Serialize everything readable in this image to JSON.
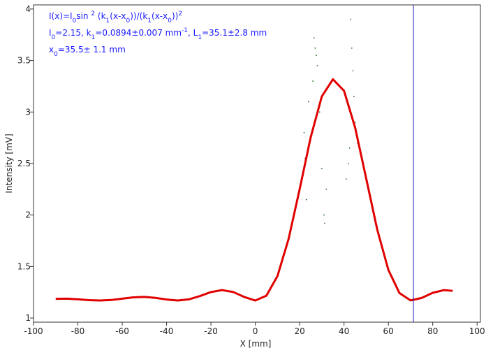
{
  "chart_data": {
    "type": "scatter",
    "xlabel": "X [mm]",
    "ylabel": "Intensity [mV]",
    "xlim": [
      -100,
      101.5
    ],
    "ylim": [
      0.96,
      4.04
    ],
    "xticks": [
      -100,
      -80,
      -60,
      -40,
      -20,
      0,
      20,
      40,
      60,
      80,
      100
    ],
    "yticks": [
      1,
      1.5,
      2,
      2.5,
      3,
      3.5,
      4
    ],
    "cursor_x": 71.3,
    "cursor_color": "#2020c0",
    "annotations": [
      [
        {
          "text": "I(x)=I"
        },
        {
          "sub": "0"
        },
        {
          "text": "sin "
        },
        {
          "sup": "2"
        },
        {
          "text": " (k"
        },
        {
          "sub": "1"
        },
        {
          "text": "(x-x"
        },
        {
          "sub": "0"
        },
        {
          "text": "))/(k"
        },
        {
          "sub": "1"
        },
        {
          "text": "(x-x"
        },
        {
          "sub": "0"
        },
        {
          "text": "))"
        },
        {
          "sup": "2"
        }
      ],
      [
        {
          "text": "I"
        },
        {
          "sub": "0"
        },
        {
          "text": "=2.15,  k"
        },
        {
          "sub": "1"
        },
        {
          "text": "=0.0894±0.007 mm"
        },
        {
          "sup": "-1"
        },
        {
          "text": ",   L"
        },
        {
          "sub": "1"
        },
        {
          "text": "=35.1±2.8 mm"
        }
      ],
      [
        {
          "text": "x"
        },
        {
          "sub": "0"
        },
        {
          "text": "=35.5±  1.1 mm"
        }
      ]
    ],
    "series": [
      {
        "color": "#e00000",
        "x": [
          -90,
          -85,
          -80,
          -75,
          -70,
          -65,
          -60,
          -55,
          -50,
          -45,
          -40,
          -35,
          -30,
          -25,
          -20,
          -15,
          -10,
          -5,
          0,
          5,
          10,
          15,
          20,
          25,
          30,
          35,
          40,
          45,
          50,
          55,
          60,
          65,
          70,
          75,
          80,
          85,
          89
        ],
        "values": [
          1.186,
          1.188,
          1.182,
          1.174,
          1.17,
          1.175,
          1.188,
          1.201,
          1.205,
          1.196,
          1.18,
          1.17,
          1.181,
          1.213,
          1.252,
          1.271,
          1.253,
          1.205,
          1.17,
          1.217,
          1.408,
          1.767,
          2.251,
          2.757,
          3.152,
          3.318,
          3.206,
          2.85,
          2.355,
          1.857,
          1.467,
          1.242,
          1.171,
          1.195,
          1.245,
          1.271,
          1.264
        ]
      },
      {
        "color": "#2a6b2a",
        "x": [
          22,
          22.5,
          23,
          24,
          26,
          26.5,
          27,
          27.5,
          28,
          29,
          30,
          31,
          31.3,
          32,
          41,
          42,
          42.5,
          43,
          43.5,
          44,
          44.5,
          45,
          46
        ],
        "values": [
          2.8,
          2.55,
          2.15,
          3.1,
          3.3,
          3.72,
          3.62,
          3.55,
          3.45,
          3.0,
          2.45,
          2.0,
          1.92,
          2.25,
          2.35,
          2.5,
          2.65,
          3.9,
          3.62,
          3.4,
          3.15,
          2.9,
          2.7
        ]
      }
    ]
  }
}
